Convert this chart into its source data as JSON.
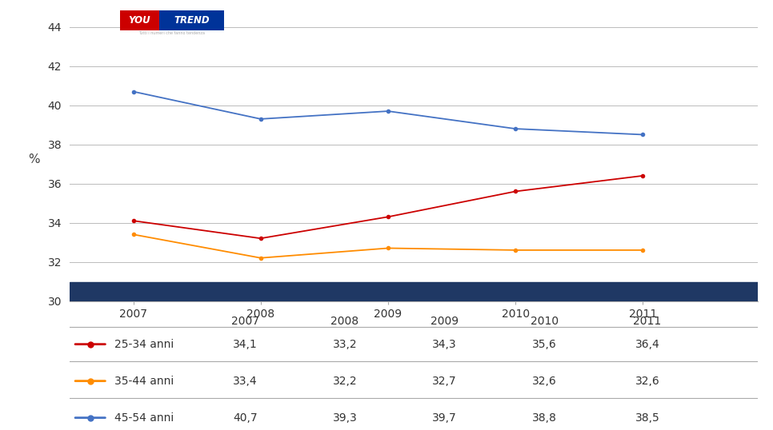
{
  "years": [
    2007,
    2008,
    2009,
    2010,
    2011
  ],
  "series": [
    {
      "label": "25-34 anni",
      "values": [
        34.1,
        33.2,
        34.3,
        35.6,
        36.4
      ],
      "color": "#CC0000"
    },
    {
      "label": "35-44 anni",
      "values": [
        33.4,
        32.2,
        32.7,
        32.6,
        32.6
      ],
      "color": "#FF8C00"
    },
    {
      "label": "45-54 anni",
      "values": [
        40.7,
        39.3,
        39.7,
        38.8,
        38.5
      ],
      "color": "#4472C4"
    }
  ],
  "ylabel": "%",
  "ylim": [
    30,
    44.5
  ],
  "yticks": [
    30,
    32,
    34,
    36,
    38,
    40,
    42,
    44
  ],
  "bg_color": "#FFFFFF",
  "plot_bg": "#FFFFFF",
  "dark_band_color": "#1F3864",
  "legend_rows": [
    {
      "label": "25-34 anni",
      "values": [
        "34,1",
        "33,2",
        "34,3",
        "35,6",
        "36,4"
      ],
      "color": "#CC0000"
    },
    {
      "label": "35-44 anni",
      "values": [
        "33,4",
        "32,2",
        "32,7",
        "32,6",
        "32,6"
      ],
      "color": "#FF8C00"
    },
    {
      "label": "45-54 anni",
      "values": [
        "40,7",
        "39,3",
        "39,7",
        "38,8",
        "38,5"
      ],
      "color": "#4472C4"
    }
  ],
  "you_color": "#CC0000",
  "trend_color": "#003399",
  "logo_text_you": "YOU",
  "logo_text_trend": "TREND",
  "logo_subtitle": "Tutti i numeri che fanno tendenza"
}
